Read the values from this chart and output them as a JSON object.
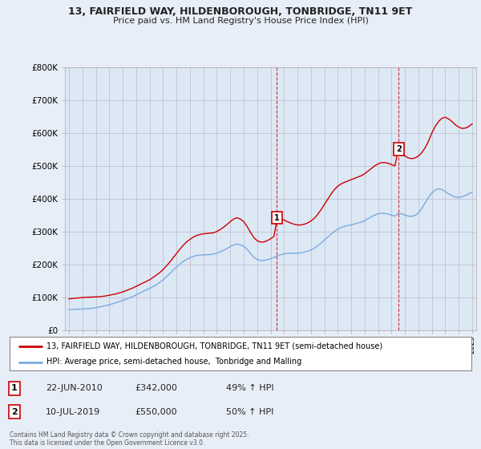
{
  "title": "13, FAIRFIELD WAY, HILDENBOROUGH, TONBRIDGE, TN11 9ET",
  "subtitle": "Price paid vs. HM Land Registry's House Price Index (HPI)",
  "ylim": [
    0,
    800000
  ],
  "yticks": [
    0,
    100000,
    200000,
    300000,
    400000,
    500000,
    600000,
    700000,
    800000
  ],
  "ytick_labels": [
    "£0",
    "£100K",
    "£200K",
    "£300K",
    "£400K",
    "£500K",
    "£600K",
    "£700K",
    "£800K"
  ],
  "background_color": "#e8eef8",
  "plot_background": "#dde8f5",
  "red_line_color": "#cc0000",
  "blue_line_color": "#7aabde",
  "marker1_year": 2010.47,
  "marker1_price": 342000,
  "marker2_year": 2019.53,
  "marker2_price": 550000,
  "legend_line1": "13, FAIRFIELD WAY, HILDENBOROUGH, TONBRIDGE, TN11 9ET (semi-detached house)",
  "legend_line2": "HPI: Average price, semi-detached house,  Tonbridge and Malling",
  "table_row1": [
    "1",
    "22-JUN-2010",
    "£342,000",
    "49% ↑ HPI"
  ],
  "table_row2": [
    "2",
    "10-JUL-2019",
    "£550,000",
    "50% ↑ HPI"
  ],
  "footer": "Contains HM Land Registry data © Crown copyright and database right 2025.\nThis data is licensed under the Open Government Licence v3.0.",
  "red_x": [
    1995.0,
    1995.25,
    1995.5,
    1995.75,
    1996.0,
    1996.25,
    1996.5,
    1996.75,
    1997.0,
    1997.25,
    1997.5,
    1997.75,
    1998.0,
    1998.25,
    1998.5,
    1998.75,
    1999.0,
    1999.25,
    1999.5,
    1999.75,
    2000.0,
    2000.25,
    2000.5,
    2000.75,
    2001.0,
    2001.25,
    2001.5,
    2001.75,
    2002.0,
    2002.25,
    2002.5,
    2002.75,
    2003.0,
    2003.25,
    2003.5,
    2003.75,
    2004.0,
    2004.25,
    2004.5,
    2004.75,
    2005.0,
    2005.25,
    2005.5,
    2005.75,
    2006.0,
    2006.25,
    2006.5,
    2006.75,
    2007.0,
    2007.25,
    2007.5,
    2007.75,
    2008.0,
    2008.25,
    2008.5,
    2008.75,
    2009.0,
    2009.25,
    2009.5,
    2009.75,
    2010.0,
    2010.25,
    2010.5,
    2010.75,
    2011.0,
    2011.25,
    2011.5,
    2011.75,
    2012.0,
    2012.25,
    2012.5,
    2012.75,
    2013.0,
    2013.25,
    2013.5,
    2013.75,
    2014.0,
    2014.25,
    2014.5,
    2014.75,
    2015.0,
    2015.25,
    2015.5,
    2015.75,
    2016.0,
    2016.25,
    2016.5,
    2016.75,
    2017.0,
    2017.25,
    2017.5,
    2017.75,
    2018.0,
    2018.25,
    2018.5,
    2018.75,
    2019.0,
    2019.25,
    2019.5,
    2019.75,
    2020.0,
    2020.25,
    2020.5,
    2020.75,
    2021.0,
    2021.25,
    2021.5,
    2021.75,
    2022.0,
    2022.25,
    2022.5,
    2022.75,
    2023.0,
    2023.25,
    2023.5,
    2023.75,
    2024.0,
    2024.25,
    2024.5,
    2024.75,
    2025.0
  ],
  "red_y": [
    95000,
    96000,
    97000,
    98000,
    99000,
    99500,
    100000,
    100500,
    101000,
    101500,
    102500,
    104000,
    106000,
    108000,
    110000,
    113000,
    116000,
    120000,
    124000,
    128000,
    133000,
    138000,
    143000,
    148000,
    153000,
    160000,
    167000,
    175000,
    184000,
    195000,
    207000,
    220000,
    233000,
    246000,
    258000,
    268000,
    276000,
    283000,
    288000,
    291000,
    293000,
    294000,
    295000,
    296000,
    300000,
    306000,
    313000,
    321000,
    330000,
    338000,
    342000,
    338000,
    330000,
    316000,
    298000,
    282000,
    272000,
    268000,
    268000,
    272000,
    278000,
    285000,
    342000,
    340000,
    335000,
    330000,
    326000,
    322000,
    320000,
    320000,
    322000,
    326000,
    332000,
    340000,
    352000,
    366000,
    382000,
    398000,
    414000,
    428000,
    438000,
    445000,
    450000,
    454000,
    458000,
    462000,
    466000,
    470000,
    476000,
    484000,
    492000,
    500000,
    506000,
    510000,
    510000,
    508000,
    504000,
    500000,
    550000,
    540000,
    530000,
    524000,
    522000,
    524000,
    530000,
    540000,
    555000,
    575000,
    600000,
    620000,
    635000,
    645000,
    648000,
    643000,
    635000,
    625000,
    618000,
    614000,
    615000,
    620000,
    628000
  ],
  "blue_x": [
    1995.0,
    1995.25,
    1995.5,
    1995.75,
    1996.0,
    1996.25,
    1996.5,
    1996.75,
    1997.0,
    1997.25,
    1997.5,
    1997.75,
    1998.0,
    1998.25,
    1998.5,
    1998.75,
    1999.0,
    1999.25,
    1999.5,
    1999.75,
    2000.0,
    2000.25,
    2000.5,
    2000.75,
    2001.0,
    2001.25,
    2001.5,
    2001.75,
    2002.0,
    2002.25,
    2002.5,
    2002.75,
    2003.0,
    2003.25,
    2003.5,
    2003.75,
    2004.0,
    2004.25,
    2004.5,
    2004.75,
    2005.0,
    2005.25,
    2005.5,
    2005.75,
    2006.0,
    2006.25,
    2006.5,
    2006.75,
    2007.0,
    2007.25,
    2007.5,
    2007.75,
    2008.0,
    2008.25,
    2008.5,
    2008.75,
    2009.0,
    2009.25,
    2009.5,
    2009.75,
    2010.0,
    2010.25,
    2010.5,
    2010.75,
    2011.0,
    2011.25,
    2011.5,
    2011.75,
    2012.0,
    2012.25,
    2012.5,
    2012.75,
    2013.0,
    2013.25,
    2013.5,
    2013.75,
    2014.0,
    2014.25,
    2014.5,
    2014.75,
    2015.0,
    2015.25,
    2015.5,
    2015.75,
    2016.0,
    2016.25,
    2016.5,
    2016.75,
    2017.0,
    2017.25,
    2017.5,
    2017.75,
    2018.0,
    2018.25,
    2018.5,
    2018.75,
    2019.0,
    2019.25,
    2019.5,
    2019.75,
    2020.0,
    2020.25,
    2020.5,
    2020.75,
    2021.0,
    2021.25,
    2021.5,
    2021.75,
    2022.0,
    2022.25,
    2022.5,
    2022.75,
    2023.0,
    2023.25,
    2023.5,
    2023.75,
    2024.0,
    2024.25,
    2024.5,
    2024.75,
    2025.0
  ],
  "blue_y": [
    62000,
    62500,
    63000,
    63500,
    64000,
    64500,
    65500,
    66500,
    68000,
    70000,
    72000,
    74500,
    77000,
    80000,
    83000,
    86500,
    90000,
    94000,
    98000,
    102000,
    107000,
    112000,
    117000,
    122000,
    127000,
    132000,
    138000,
    145000,
    153000,
    162000,
    172000,
    182000,
    192000,
    201000,
    209000,
    215000,
    220000,
    224000,
    227000,
    228000,
    229000,
    229000,
    230000,
    231000,
    234000,
    238000,
    243000,
    248000,
    254000,
    259000,
    262000,
    260000,
    255000,
    246000,
    234000,
    222000,
    215000,
    212000,
    212000,
    214000,
    217000,
    221000,
    226000,
    229000,
    232000,
    233000,
    234000,
    234000,
    234000,
    235000,
    237000,
    240000,
    244000,
    249000,
    256000,
    264000,
    274000,
    283000,
    292000,
    300000,
    307000,
    312000,
    316000,
    318000,
    320000,
    323000,
    326000,
    329000,
    333000,
    339000,
    345000,
    350000,
    354000,
    356000,
    355000,
    353000,
    350000,
    347000,
    355000,
    354000,
    350000,
    347000,
    346000,
    349000,
    357000,
    370000,
    387000,
    404000,
    417000,
    426000,
    430000,
    428000,
    422000,
    415000,
    409000,
    405000,
    404000,
    406000,
    410000,
    415000,
    420000
  ]
}
